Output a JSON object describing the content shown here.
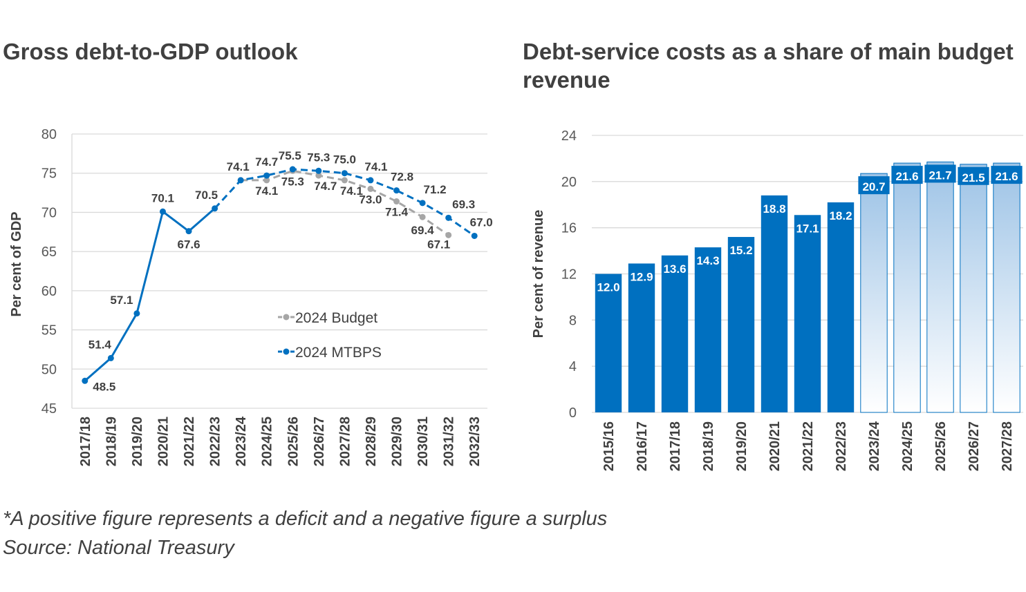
{
  "footnote": "*A positive figure represents a deficit and a negative figure a surplus",
  "source": "Source: National Treasury",
  "colors": {
    "mtbps": "#0070C0",
    "budget": "#A6A6A6",
    "bar_actual": "#0070C0",
    "bar_projected_top": "#9DC3E6",
    "bar_projected_bottom": "#FFFFFF",
    "grid": "#D9D9D9",
    "text": "#404040"
  },
  "chart_data": [
    {
      "type": "line",
      "title": "Gross debt-to-GDP outlook",
      "ylabel": "Per cent of GDP",
      "xlabel": "",
      "ylim": [
        45,
        80
      ],
      "yticks": [
        45,
        50,
        55,
        60,
        65,
        70,
        75,
        80
      ],
      "grid": true,
      "legend_position": "center-right",
      "categories": [
        "2017/18",
        "2018/19",
        "2019/20",
        "2020/21",
        "2021/22",
        "2022/23",
        "2023/24",
        "2024/25",
        "2025/26",
        "2026/27",
        "2027/28",
        "2028/29",
        "2029/30",
        "2030/31",
        "2031/32",
        "2032/33"
      ],
      "series": [
        {
          "name": "2024 Budget",
          "color": "#A6A6A6",
          "style": "dashed",
          "values": [
            null,
            null,
            null,
            null,
            null,
            null,
            74.1,
            74.1,
            75.3,
            74.7,
            74.1,
            73.0,
            71.4,
            69.4,
            67.1,
            null
          ],
          "labels": [
            null,
            null,
            null,
            null,
            null,
            null,
            null,
            "74.1",
            "75.3",
            "74.7",
            "74.1",
            "73.0",
            "71.4",
            "69.4",
            "67.1",
            null
          ]
        },
        {
          "name": "2024 MTBPS",
          "color": "#0070C0",
          "style": "solid-then-dashed",
          "solid_until_index": 5,
          "values": [
            48.5,
            51.4,
            57.1,
            70.1,
            67.6,
            70.5,
            74.1,
            74.7,
            75.5,
            75.3,
            75.0,
            74.1,
            72.8,
            71.2,
            69.3,
            67.0
          ],
          "labels": [
            "48.5",
            "51.4",
            "57.1",
            "70.1",
            "67.6",
            "70.5",
            "74.1",
            "74.7",
            "75.5",
            "75.3",
            "75.0",
            "74.1",
            "72.8",
            "71.2",
            "69.3",
            "67.0"
          ]
        }
      ]
    },
    {
      "type": "bar",
      "title": "Debt-service costs as a share of main budget revenue",
      "ylabel": "Per cent of revenue",
      "xlabel": "",
      "ylim": [
        0,
        24
      ],
      "yticks": [
        0,
        4,
        8,
        12,
        16,
        20,
        24
      ],
      "grid": true,
      "categories": [
        "2015/16",
        "2016/17",
        "2017/18",
        "2018/19",
        "2019/20",
        "2020/21",
        "2021/22",
        "2022/23",
        "2023/24",
        "2024/25",
        "2025/26",
        "2026/27",
        "2027/28"
      ],
      "values": [
        12.0,
        12.9,
        13.6,
        14.3,
        15.2,
        18.8,
        17.1,
        18.2,
        20.7,
        21.6,
        21.7,
        21.5,
        21.6
      ],
      "labels": [
        "12.0",
        "12.9",
        "13.6",
        "14.3",
        "15.2",
        "18.8",
        "17.1",
        "18.2",
        "20.7",
        "21.6",
        "21.7",
        "21.5",
        "21.6"
      ],
      "projected_from_index": 8
    }
  ]
}
